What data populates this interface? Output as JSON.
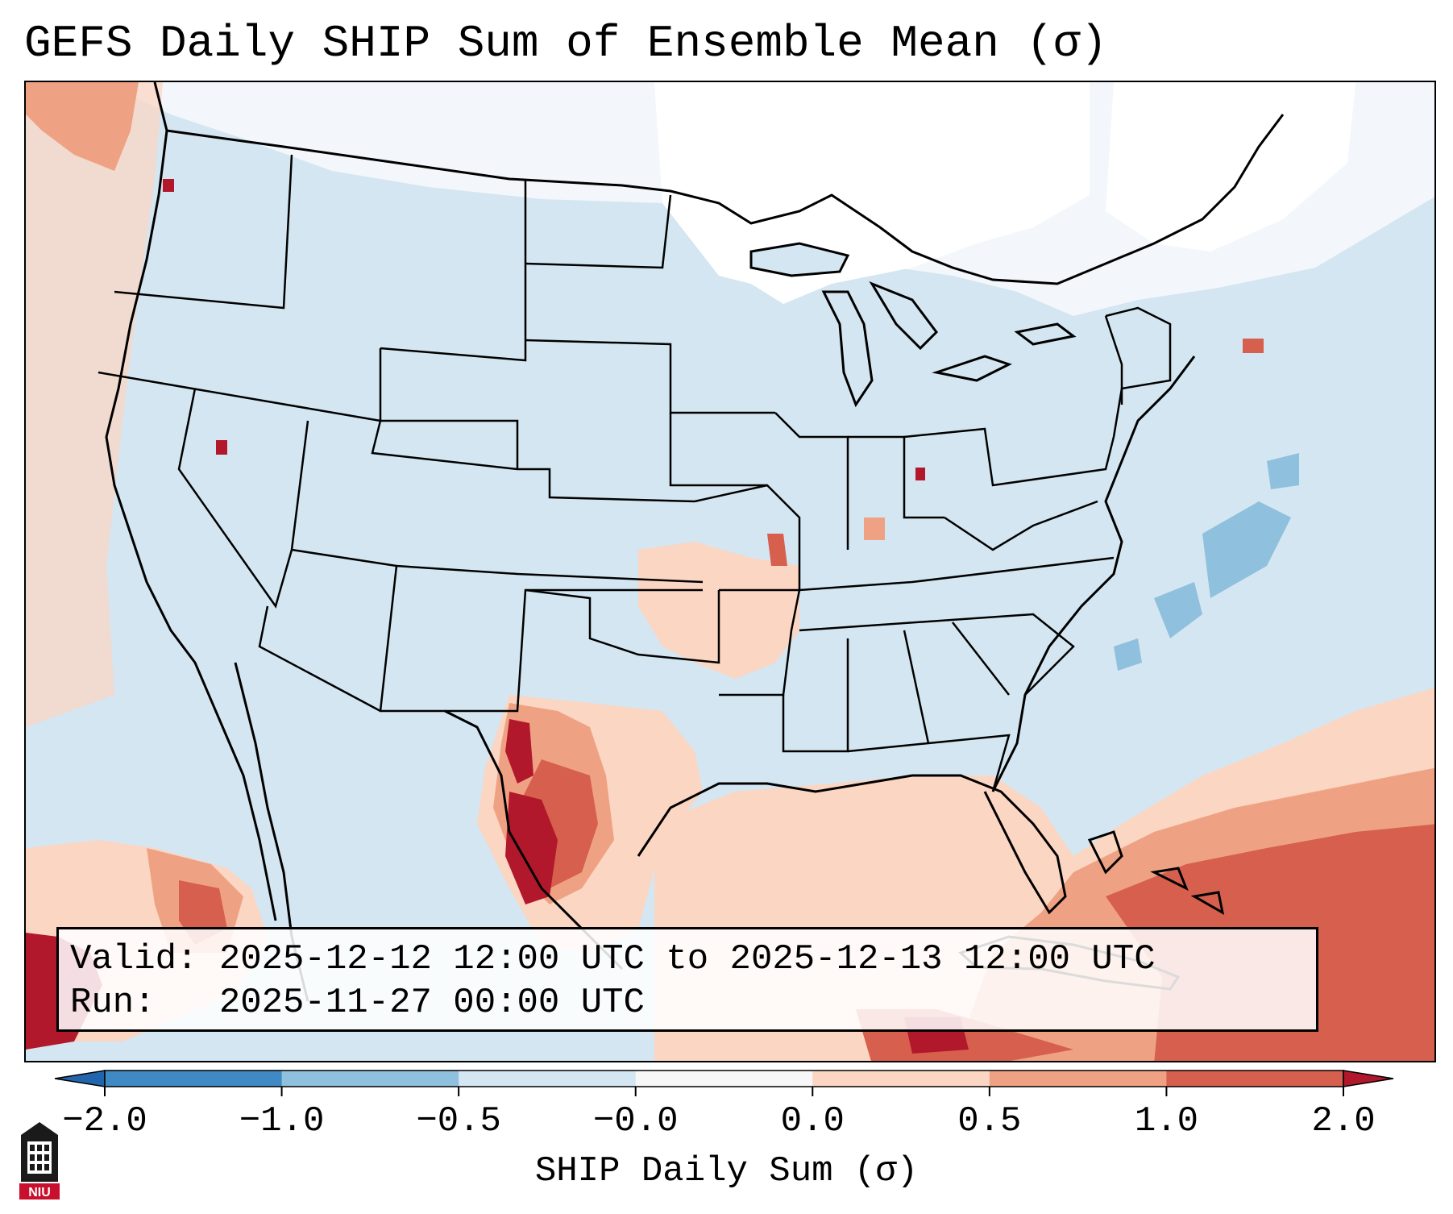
{
  "title": "GEFS Daily SHIP Sum of Ensemble Mean (σ)",
  "info": {
    "valid_label": "Valid:",
    "valid_value": "2025-12-12 12:00 UTC to 2025-12-13 12:00 UTC",
    "run_label": "Run:",
    "run_value": "2025-11-27 00:00 UTC"
  },
  "colorbar": {
    "label": "SHIP Daily Sum (σ)",
    "ticks": [
      "−2.0",
      "−1.0",
      "−0.5",
      "−0.0",
      "0.0",
      "0.5",
      "1.0",
      "2.0"
    ],
    "colors": [
      "#3f89c4",
      "#8fc0dd",
      "#d4e6f1",
      "#f7f7f7",
      "#fbd6c3",
      "#efa283",
      "#d6604d",
      "#b2182b"
    ],
    "extend_low_color": "#2166ac",
    "extend_high_color": "#b2182b"
  },
  "logo": {
    "text": "NIU",
    "color": "#c8102e"
  }
}
